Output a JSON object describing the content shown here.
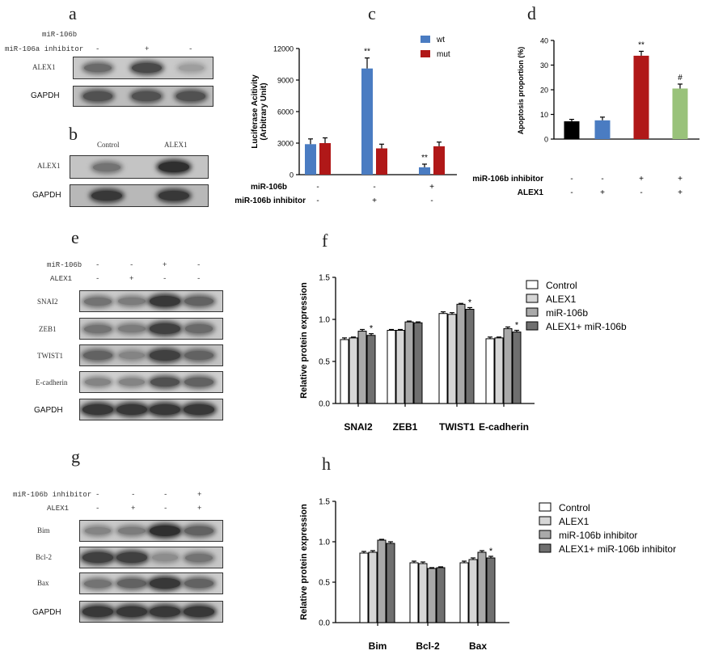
{
  "panels": {
    "a": "a",
    "b": "b",
    "c": "c",
    "d": "d",
    "e": "e",
    "f": "f",
    "g": "g",
    "h": "h"
  },
  "a": {
    "row1": {
      "label": "miR-106b",
      "signs": [
        "",
        "",
        ""
      ]
    },
    "row2": {
      "label": "miR-106a inhibitor",
      "signs": [
        "-",
        "+",
        "-"
      ]
    },
    "lanes": [
      "ALEX1",
      "GAPDH"
    ],
    "alex1_intensity": [
      0.55,
      0.75,
      0.25
    ],
    "gapdh_intensity": [
      0.7,
      0.7,
      0.7
    ]
  },
  "b": {
    "cols": [
      "Control",
      "ALEX1"
    ],
    "lanes": [
      "ALEX1",
      "GAPDH"
    ],
    "alex1_intensity": [
      0.5,
      0.9
    ],
    "gapdh_intensity": [
      0.85,
      0.85
    ]
  },
  "e": {
    "row1": {
      "label": "miR-106b",
      "signs": [
        "-",
        "-",
        "+",
        "-"
      ]
    },
    "row2": {
      "label": "ALEX1",
      "signs": [
        "-",
        "+",
        "-",
        "-"
      ]
    },
    "lanes": [
      "SNAI2",
      "ZEB1",
      "TWIST1",
      "E-cadherin",
      "GAPDH"
    ],
    "intensity": [
      [
        0.5,
        0.45,
        0.85,
        0.6
      ],
      [
        0.5,
        0.45,
        0.8,
        0.55
      ],
      [
        0.6,
        0.4,
        0.8,
        0.6
      ],
      [
        0.4,
        0.4,
        0.7,
        0.6
      ],
      [
        0.85,
        0.85,
        0.85,
        0.85
      ]
    ]
  },
  "g": {
    "row1": {
      "label": "miR-106b inhibitor",
      "signs": [
        "-",
        "-",
        "-",
        "+"
      ]
    },
    "row2": {
      "label": "ALEX1",
      "signs": [
        "-",
        "+",
        "-",
        "+"
      ]
    },
    "lanes": [
      "Bim",
      "Bcl-2",
      "Bax",
      "GAPDH"
    ],
    "intensity": [
      [
        0.4,
        0.45,
        0.9,
        0.6
      ],
      [
        0.8,
        0.8,
        0.35,
        0.5
      ],
      [
        0.5,
        0.6,
        0.85,
        0.6
      ],
      [
        0.85,
        0.85,
        0.85,
        0.85
      ]
    ]
  },
  "chart_data": [
    {
      "id": "c",
      "type": "bar",
      "ylabel": "Luciferase Acitivity\n(Arbitrary Unit)",
      "ylim": [
        0,
        12000
      ],
      "yticks": [
        "0",
        "3000",
        "6000",
        "9000",
        "12000"
      ],
      "groups": 3,
      "series": [
        {
          "name": "wt",
          "color": "#4a7cc2",
          "values": [
            2900,
            10100,
            700
          ],
          "errors": [
            500,
            1000,
            300
          ]
        },
        {
          "name": "mut",
          "color": "#b01818",
          "values": [
            3000,
            2500,
            2700
          ],
          "errors": [
            500,
            400,
            400
          ]
        }
      ],
      "annotations": [
        {
          "group": 1,
          "series": 0,
          "text": "**"
        },
        {
          "group": 2,
          "series": 0,
          "text": "**"
        }
      ],
      "conditions": [
        {
          "label": "miR-106b",
          "signs": [
            "-",
            "-",
            "+"
          ]
        },
        {
          "label": "miR-106b inhibitor",
          "signs": [
            "-",
            "+",
            "-"
          ]
        }
      ],
      "legend": "top-right"
    },
    {
      "id": "d",
      "type": "bar",
      "ylabel": "Apoptosis proportion (%)",
      "ylim": [
        0,
        40
      ],
      "yticks": [
        "0",
        "10",
        "20",
        "30",
        "40"
      ],
      "values": [
        7.2,
        7.6,
        33.8,
        20.5
      ],
      "errors": [
        0.8,
        1.3,
        1.8,
        1.8
      ],
      "colors": [
        "#000000",
        "#4a7cc2",
        "#b01818",
        "#99c27a"
      ],
      "annotations": [
        {
          "index": 2,
          "text": "**"
        },
        {
          "index": 3,
          "text": "#"
        }
      ],
      "conditions": [
        {
          "label": "miR-106b inhibitor",
          "signs": [
            "-",
            "-",
            "+",
            "+"
          ]
        },
        {
          "label": "ALEX1",
          "signs": [
            "-",
            "+",
            "-",
            "+"
          ]
        }
      ]
    },
    {
      "id": "f",
      "type": "bar",
      "ylabel": "Relative protein expression",
      "ylim": [
        0,
        1.5
      ],
      "yticks": [
        "0.0",
        "0.5",
        "1.0",
        "1.5"
      ],
      "categories": [
        "SNAI2",
        "ZEB1",
        "TWIST1",
        "E-cadherin"
      ],
      "series": [
        {
          "name": "Control",
          "color": "#ffffff",
          "values": [
            0.76,
            0.87,
            1.07,
            0.77
          ],
          "errors": [
            0.02,
            0.01,
            0.02,
            0.02
          ]
        },
        {
          "name": "ALEX1",
          "color": "#d6d6d6",
          "values": [
            0.78,
            0.87,
            1.06,
            0.78
          ],
          "errors": [
            0.01,
            0.01,
            0.02,
            0.01
          ]
        },
        {
          "name": "miR-106b",
          "color": "#a9a9a9",
          "values": [
            0.86,
            0.97,
            1.18,
            0.89
          ],
          "errors": [
            0.02,
            0.01,
            0.01,
            0.02
          ]
        },
        {
          "name": "ALEX1+ miR-106b",
          "color": "#6f6f6f",
          "values": [
            0.81,
            0.96,
            1.12,
            0.85
          ],
          "errors": [
            0.02,
            0.01,
            0.02,
            0.02
          ]
        }
      ],
      "annotations": [
        {
          "category": 0,
          "series": 3,
          "text": "*"
        },
        {
          "category": 2,
          "series": 3,
          "text": "*"
        },
        {
          "category": 3,
          "series": 3,
          "text": "*"
        }
      ],
      "legend": "right"
    },
    {
      "id": "h",
      "type": "bar",
      "ylabel": "Relative protein expression",
      "ylim": [
        0,
        1.5
      ],
      "yticks": [
        "0.0",
        "0.5",
        "1.0",
        "1.5"
      ],
      "categories": [
        "Bim",
        "Bcl-2",
        "Bax"
      ],
      "series": [
        {
          "name": "Control",
          "color": "#ffffff",
          "values": [
            0.86,
            0.74,
            0.74
          ],
          "errors": [
            0.02,
            0.02,
            0.02
          ]
        },
        {
          "name": "ALEX1",
          "color": "#d6d6d6",
          "values": [
            0.87,
            0.73,
            0.78
          ],
          "errors": [
            0.02,
            0.02,
            0.02
          ]
        },
        {
          "name": "miR-106b inhibitor",
          "color": "#a9a9a9",
          "values": [
            1.02,
            0.67,
            0.87
          ],
          "errors": [
            0.01,
            0.01,
            0.02
          ]
        },
        {
          "name": "ALEX1+ miR-106b inhibitor",
          "color": "#6f6f6f",
          "values": [
            0.98,
            0.68,
            0.8
          ],
          "errors": [
            0.02,
            0.01,
            0.02
          ]
        }
      ],
      "annotations": [
        {
          "category": 2,
          "series": 3,
          "text": "*"
        }
      ],
      "legend": "right"
    }
  ]
}
